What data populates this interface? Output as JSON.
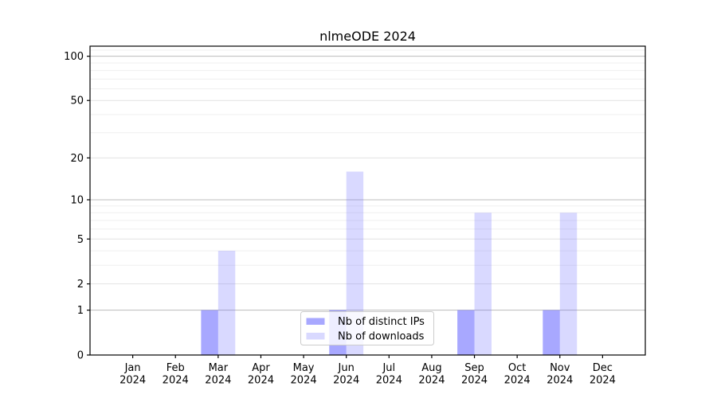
{
  "chart_data": {
    "type": "bar",
    "title": "nlmeODE 2024",
    "categories": [
      "Jan",
      "Feb",
      "Mar",
      "Apr",
      "May",
      "Jun",
      "Jul",
      "Aug",
      "Sep",
      "Oct",
      "Nov",
      "Dec"
    ],
    "category_year": "2024",
    "series": [
      {
        "name": "Nb of distinct IPs",
        "color": "#6666ff",
        "opacity": 0.57,
        "values": [
          0,
          0,
          1,
          0,
          0,
          1,
          0,
          0,
          1,
          0,
          1,
          0
        ]
      },
      {
        "name": "Nb of downloads",
        "color": "#6666ff",
        "opacity": 0.25,
        "values": [
          0,
          0,
          4,
          0,
          0,
          16,
          0,
          0,
          8,
          0,
          8,
          0
        ]
      }
    ],
    "yscale": "log1p",
    "ylim": [
      0,
      117
    ],
    "yticks": [
      0,
      1,
      2,
      5,
      10,
      20,
      50,
      100
    ],
    "yticks_minor": [
      3,
      4,
      6,
      7,
      8,
      9,
      30,
      40,
      60,
      70,
      80,
      90,
      110
    ],
    "decade_gridlines": [
      1,
      10,
      100
    ],
    "grid": true,
    "xlabel": "",
    "ylabel": "",
    "legend": {
      "position": "lower center",
      "labels": [
        "Nb of distinct IPs",
        "Nb of downloads"
      ]
    }
  },
  "colors": {
    "background": "#ffffff",
    "axis": "#000000",
    "text": "#000000",
    "decade_grid": "#bcbcbc",
    "major_grid": "#e2e2e2",
    "minor_grid": "#efefef",
    "legend_border": "#cccccc",
    "legend_bg": "rgba(255,255,255,0.8)"
  }
}
